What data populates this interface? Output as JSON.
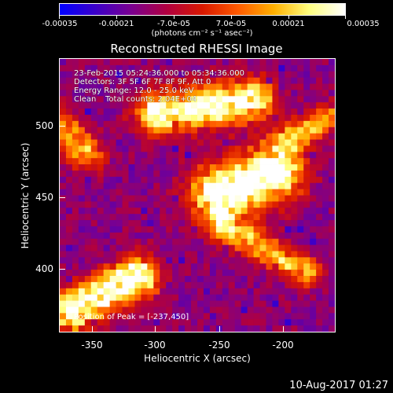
{
  "colorbar": {
    "tick_labels": [
      "-0.00035",
      "-0.00021",
      "-7.0e-05",
      "7.0e-05",
      "0.00021",
      "0.00035"
    ],
    "units_label": "(photons cm⁻² s⁻¹ asec⁻²)",
    "gradient_colors": [
      "#0000ff",
      "#3b00c8",
      "#7a0090",
      "#b00040",
      "#d81800",
      "#ff5a00",
      "#ffb000",
      "#ffff80",
      "#ffffff"
    ]
  },
  "title": "Reconstructed RHESSI Image",
  "info": {
    "time_range": "23-Feb-2015 05:24:36.000 to 05:34:36.000",
    "detectors": "Detectors: 3F 5F 6F 7F 8F 9F, Att 0",
    "energy_range": "Energy Range: 12.0 - 25.0 keV",
    "algorithm": "Clean",
    "total_counts": "Total counts: 2.04E+04"
  },
  "peak_text": "Position of Peak = [-237,450]",
  "x_axis": {
    "label": "Heliocentric X (arcsec)",
    "ticks": [
      "-350",
      "-300",
      "-250",
      "-200"
    ],
    "range": [
      -367,
      -173
    ]
  },
  "y_axis": {
    "label": "Heliocentric Y (arcsec)",
    "ticks": [
      "500",
      "450",
      "400"
    ],
    "range": [
      355,
      548
    ]
  },
  "footer_timestamp": "10-Aug-2017 01:27"
}
